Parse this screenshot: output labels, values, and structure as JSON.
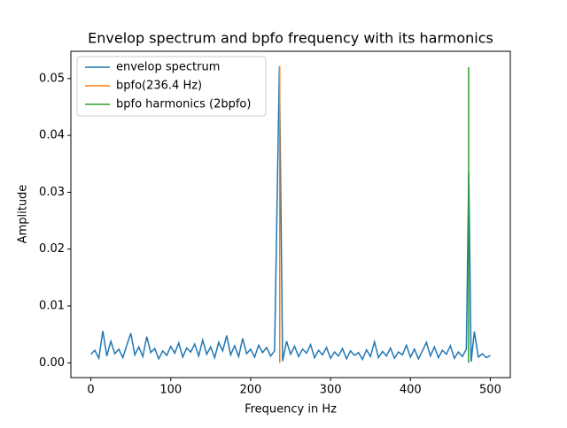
{
  "chart_data": {
    "type": "line",
    "title": "Envelop spectrum and bpfo frequency with its harmonics",
    "xlabel": "Frequency in Hz",
    "ylabel": "Amplitude",
    "xlim": [
      -25,
      525
    ],
    "ylim": [
      -0.0026,
      0.0548
    ],
    "xticks": [
      0,
      100,
      200,
      300,
      400,
      500
    ],
    "yticks": [
      {
        "value": 0,
        "label": "0.00"
      },
      {
        "value": 0.01,
        "label": "0.01"
      },
      {
        "value": 0.02,
        "label": "0.02"
      },
      {
        "value": 0.03,
        "label": "0.03"
      },
      {
        "value": 0.04,
        "label": "0.04"
      },
      {
        "value": 0.05,
        "label": "0.05"
      }
    ],
    "legend": "upper left",
    "series": [
      {
        "name": "envelop spectrum",
        "color": "#1f77b4",
        "x": [
          0,
          5,
          10,
          15,
          20,
          25,
          30,
          35,
          40,
          45,
          50,
          55,
          60,
          65,
          70,
          75,
          80,
          85,
          90,
          95,
          100,
          105,
          110,
          115,
          120,
          125,
          130,
          135,
          140,
          145,
          150,
          155,
          160,
          165,
          170,
          175,
          180,
          185,
          190,
          195,
          200,
          205,
          210,
          215,
          220,
          225,
          230,
          236,
          240,
          245,
          250,
          255,
          260,
          265,
          270,
          275,
          280,
          285,
          290,
          295,
          300,
          305,
          310,
          315,
          320,
          325,
          330,
          335,
          340,
          345,
          350,
          355,
          360,
          365,
          370,
          375,
          380,
          385,
          390,
          395,
          400,
          405,
          410,
          415,
          420,
          425,
          430,
          435,
          440,
          445,
          450,
          455,
          460,
          465,
          470,
          473,
          476,
          480,
          485,
          490,
          495,
          500
        ],
        "values": [
          0.0015,
          0.0022,
          0.0008,
          0.0056,
          0.0012,
          0.0038,
          0.0016,
          0.0024,
          0.0009,
          0.0031,
          0.0052,
          0.0014,
          0.0028,
          0.0011,
          0.0046,
          0.0018,
          0.0025,
          0.0007,
          0.0021,
          0.0013,
          0.0029,
          0.0017,
          0.0035,
          0.001,
          0.0026,
          0.0019,
          0.0033,
          0.0012,
          0.004,
          0.0015,
          0.0028,
          0.0009,
          0.0036,
          0.0021,
          0.0048,
          0.0014,
          0.003,
          0.0011,
          0.0043,
          0.0016,
          0.0024,
          0.001,
          0.0031,
          0.0018,
          0.0027,
          0.0012,
          0.0021,
          0.0522,
          0.0003,
          0.0038,
          0.0015,
          0.0029,
          0.0011,
          0.0024,
          0.0017,
          0.0032,
          0.0009,
          0.0022,
          0.0014,
          0.0027,
          0.0008,
          0.0019,
          0.0012,
          0.0025,
          0.0007,
          0.0021,
          0.0013,
          0.0018,
          0.0006,
          0.0023,
          0.0011,
          0.0037,
          0.0009,
          0.002,
          0.0012,
          0.0026,
          0.0008,
          0.0019,
          0.0014,
          0.0031,
          0.001,
          0.0024,
          0.0007,
          0.0021,
          0.0036,
          0.0012,
          0.0028,
          0.0009,
          0.0022,
          0.0015,
          0.003,
          0.0008,
          0.0019,
          0.0011,
          0.0024,
          0.0335,
          0.0002,
          0.0055,
          0.001,
          0.0016,
          0.0009,
          0.0013
        ]
      },
      {
        "name": "bpfo(236.4 Hz)",
        "color": "#ff7f0e",
        "x": [
          236.4,
          236.4
        ],
        "values": [
          0,
          0.0522
        ]
      },
      {
        "name": "bpfo harmonics (2bpfo)",
        "color": "#2ca02c",
        "x": [
          472.8,
          472.8
        ],
        "values": [
          0,
          0.052
        ]
      }
    ]
  }
}
